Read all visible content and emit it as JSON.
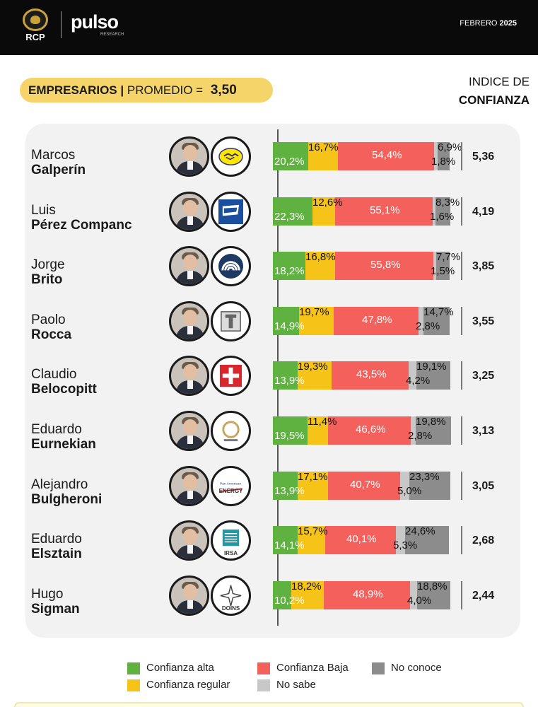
{
  "header": {
    "logo_rcp": "RCP",
    "logo_pulso": "pulso",
    "logo_pulso_sub": "RESEARCH",
    "date_month": "FEBRERO",
    "date_year": "2025"
  },
  "subtitle": {
    "group": "EMPRESARIOS |",
    "average_label": "PROMEDIO =",
    "average_value": "3,50"
  },
  "index_title": {
    "line1": "INDICE DE",
    "line2": "CONFIANZA"
  },
  "colors": {
    "alta": "#5fb23f",
    "regular": "#f6c319",
    "baja": "#f4605c",
    "no_conoce": "#8c8c8c",
    "no_sabe": "#c8c8c8"
  },
  "chart_data": {
    "type": "bar",
    "stacked": true,
    "orientation": "horizontal",
    "categories": [
      "Marcos Galperín",
      "Luis Pérez Companc",
      "Jorge Brito",
      "Paolo Rocca",
      "Claudio Belocopitt",
      "Eduardo Eurnekian",
      "Alejandro Bulgheroni",
      "Eduardo Elsztain",
      "Hugo Sigman"
    ],
    "series": [
      {
        "name": "Confianza alta",
        "values": [
          20.2,
          22.3,
          18.2,
          14.9,
          13.9,
          19.5,
          13.9,
          14.1,
          10.2
        ]
      },
      {
        "name": "Confianza regular",
        "values": [
          16.7,
          12.6,
          16.8,
          19.7,
          19.3,
          11.4,
          17.1,
          15.7,
          18.2
        ]
      },
      {
        "name": "Confianza Baja",
        "values": [
          54.4,
          55.1,
          55.8,
          47.8,
          43.5,
          46.6,
          40.7,
          40.1,
          48.9
        ]
      },
      {
        "name": "No sabe",
        "values": [
          1.8,
          1.6,
          1.5,
          2.8,
          4.2,
          2.8,
          5.0,
          5.3,
          4.0
        ]
      },
      {
        "name": "No conoce",
        "values": [
          6.9,
          8.3,
          7.7,
          14.7,
          19.1,
          19.8,
          23.3,
          24.6,
          18.8
        ]
      }
    ],
    "labels": {
      "alta": [
        "20,2%",
        "22,3%",
        "18,2%",
        "14,9%",
        "13,9%",
        "19,5%",
        "13,9%",
        "14,1%",
        "10,2%"
      ],
      "regular": [
        "16,7%",
        "12,6%",
        "16,8%",
        "19,7%",
        "19,3%",
        "11,4%",
        "17,1%",
        "15,7%",
        "18,2%"
      ],
      "baja": [
        "54,4%",
        "55,1%",
        "55,8%",
        "47,8%",
        "43,5%",
        "46,6%",
        "40,7%",
        "40,1%",
        "48,9%"
      ],
      "no_sabe": [
        "1,8%",
        "1,6%",
        "1,5%",
        "2,8%",
        "4,2%",
        "2,8%",
        "5,0%",
        "5,3%",
        "4,0%"
      ],
      "no_conoce": [
        "6,9%",
        "8,3%",
        "7,7%",
        "14,7%",
        "19,1%",
        "19,8%",
        "23,3%",
        "24,6%",
        "18,8%"
      ]
    },
    "index_values": [
      "5,36",
      "4,19",
      "3,85",
      "3,55",
      "3,25",
      "3,13",
      "3,05",
      "2,68",
      "2,44"
    ],
    "legend_placement": "bottom-center"
  },
  "people": [
    {
      "first": "Marcos",
      "last": "Galperín"
    },
    {
      "first": "Luis",
      "last": "Pérez Companc"
    },
    {
      "first": "Jorge",
      "last": "Brito"
    },
    {
      "first": "Paolo",
      "last": "Rocca"
    },
    {
      "first": "Claudio",
      "last": "Belocopitt"
    },
    {
      "first": "Eduardo",
      "last": "Eurnekian"
    },
    {
      "first": "Alejandro",
      "last": "Bulgheroni"
    },
    {
      "first": "Eduardo",
      "last": "Elsztain"
    },
    {
      "first": "Hugo",
      "last": "Sigman"
    }
  ],
  "company_logos": [
    {
      "icon": "handshake-icon",
      "text": ""
    },
    {
      "icon": "flag-icon",
      "text": ""
    },
    {
      "icon": "arcs-icon",
      "text": ""
    },
    {
      "icon": "t-building-icon",
      "text": ""
    },
    {
      "icon": "swiss-cross-icon",
      "text": ""
    },
    {
      "icon": "ring-icon",
      "text": ""
    },
    {
      "icon": "pae-icon",
      "text": "ENERGY"
    },
    {
      "icon": "irsa-icon",
      "text": "IRSA"
    },
    {
      "icon": "star-icon",
      "text": "DOINS"
    }
  ],
  "legend": {
    "alta": "Confianza alta",
    "regular": "Confianza regular",
    "baja": "Confianza Baja",
    "no_sabe": "No sabe",
    "no_conoce": "No conoce"
  }
}
